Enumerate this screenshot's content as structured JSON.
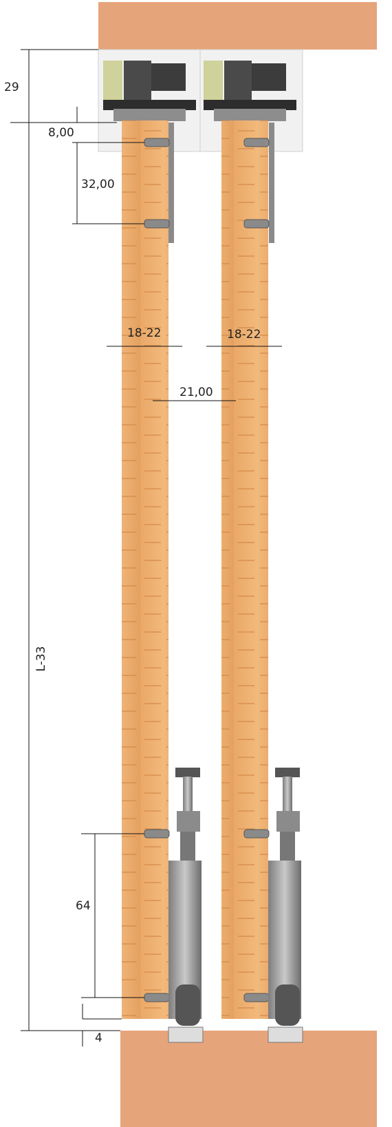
{
  "dimensions": {
    "track_height": "29",
    "screw_top_offset": "8,00",
    "screw_spacing_top": "32,00",
    "left_door_thickness": "18-22",
    "right_door_thickness": "18-22",
    "door_gap": "21,00",
    "door_height": "L-33",
    "screw_spacing_bottom": "64",
    "floor_gap": "4"
  }
}
